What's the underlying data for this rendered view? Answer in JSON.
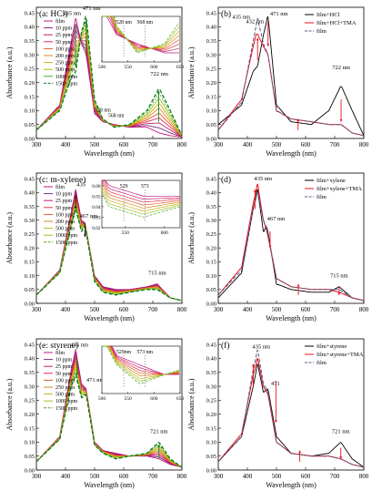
{
  "figure": {
    "panels": [
      {
        "id": "a",
        "label": "(a: HCl)",
        "xlabel": "Wavelength (nm)",
        "ylabel": "Absorbance (a.u.)",
        "legend": [
          "film",
          "10 ppm",
          "25 ppm",
          "50 ppm",
          "100 ppm",
          "200 ppm",
          "250 ppm",
          "500 ppm",
          "1000 ppm",
          "1500 ppm"
        ],
        "annotations": [
          "435 nm",
          "471 nm",
          "528 nm",
          "568 nm",
          "722 nm"
        ],
        "inset": {
          "annotations": [
            "528 nm",
            "568 nm"
          ],
          "xticks": [
            "500",
            "550",
            "600",
            "650"
          ]
        }
      },
      {
        "id": "b",
        "label": "(b)",
        "xlabel": "Wavelength (nm)",
        "ylabel": "Absorbance (a.u.)",
        "legend": [
          "film+HCl",
          "film+HCl+TMA",
          "film"
        ],
        "annotations": [
          "432 nm",
          "435 nm",
          "471 nm",
          "722 nm"
        ]
      },
      {
        "id": "c",
        "label": "(c: m-xylene)",
        "xlabel": "Wavelength (nm)",
        "ylabel": "Absorbance (a.u.)",
        "legend": [
          "film",
          "10 ppm",
          "25 ppm",
          "50 ppm",
          "100 ppm",
          "200 ppm",
          "500 ppm",
          "1000 ppm",
          "1500 ppm"
        ],
        "annotations": [
          "435",
          "467 nm",
          "715 nm"
        ],
        "inset": {
          "annotations": [
            "529",
            "573"
          ],
          "xticks": [
            "550",
            "600"
          ],
          "yticks": [
            "0.06",
            "0.05",
            "0.04",
            "0.03",
            "0.02"
          ]
        }
      },
      {
        "id": "d",
        "label": "(d)",
        "xlabel": "Wavelength (nm)",
        "ylabel": "Absorbance (a.u.)",
        "legend": [
          "film+xylene",
          "film+xylene+TMA",
          "film"
        ],
        "annotations": [
          "435 nm",
          "467 nm",
          "715 nm"
        ]
      },
      {
        "id": "e",
        "label": "(e: styrene)",
        "xlabel": "Wavelength (nm)",
        "ylabel": "Absorbance (a.u.)",
        "legend": [
          "film",
          "10 ppm",
          "25 ppm",
          "50 ppm",
          "100 ppm",
          "250 ppm",
          "500 ppm",
          "1000 ppm",
          "1500 ppm"
        ],
        "annotations": [
          "435 nm",
          "471 nm",
          "721 nm"
        ],
        "inset": {
          "annotations": [
            "529nm",
            "573 nm"
          ],
          "xticks": [
            "500",
            "550",
            "600",
            "650"
          ]
        }
      },
      {
        "id": "f",
        "label": "(f)",
        "xlabel": "Wavelength (nm)",
        "ylabel": "Absorbance (a.u.)",
        "legend": [
          "film+styrene",
          "film+styrene+TMA",
          "film"
        ],
        "annotations": [
          "435 nm",
          "471",
          "721 nm"
        ]
      }
    ],
    "xticks": [
      "300",
      "400",
      "500",
      "600",
      "700",
      "800"
    ],
    "yticks": [
      "0.00",
      "0.05",
      "0.10",
      "0.15",
      "0.20",
      "0.25",
      "0.30",
      "0.35",
      "0.40",
      "0.45"
    ],
    "colors": {
      "black": "#000000",
      "red": "#e8101a",
      "gray": "#6f6f96",
      "green": "#0a7a1a"
    }
  },
  "chart_data": [
    {
      "type": "line",
      "title": "(a: HCl)",
      "xlabel": "Wavelength (nm)",
      "ylabel": "Absorbance (a.u.)",
      "xlim": [
        300,
        800
      ],
      "ylim": [
        0,
        0.47
      ],
      "series": [
        {
          "name": "film",
          "x": [
            300,
            380,
            420,
            435,
            455,
            471,
            500,
            528,
            568,
            620,
            680,
            722,
            760,
            800
          ],
          "y": [
            0.03,
            0.12,
            0.35,
            0.43,
            0.34,
            0.3,
            0.09,
            0.06,
            0.05,
            0.04,
            0.04,
            0.02,
            0.01,
            0.005
          ]
        },
        {
          "name": "1500 ppm",
          "x": [
            300,
            380,
            420,
            435,
            455,
            471,
            500,
            528,
            568,
            620,
            680,
            722,
            760,
            800
          ],
          "y": [
            0.03,
            0.1,
            0.22,
            0.24,
            0.38,
            0.44,
            0.14,
            0.07,
            0.04,
            0.05,
            0.1,
            0.18,
            0.1,
            0.01
          ]
        }
      ]
    },
    {
      "type": "line",
      "title": "(b)",
      "xlabel": "Wavelength (nm)",
      "ylabel": "Absorbance (a.u.)",
      "xlim": [
        300,
        800
      ],
      "ylim": [
        0,
        0.47
      ],
      "series": [
        {
          "name": "film+HCl",
          "x": [
            300,
            380,
            420,
            435,
            455,
            471,
            500,
            550,
            620,
            680,
            722,
            760,
            800
          ],
          "y": [
            0.05,
            0.12,
            0.24,
            0.26,
            0.37,
            0.44,
            0.12,
            0.06,
            0.05,
            0.1,
            0.19,
            0.1,
            0.01
          ]
        },
        {
          "name": "film+HCl+TMA",
          "x": [
            300,
            380,
            420,
            432,
            455,
            471,
            500,
            550,
            620,
            680,
            722,
            760,
            800
          ],
          "y": [
            0.03,
            0.14,
            0.33,
            0.38,
            0.33,
            0.3,
            0.1,
            0.07,
            0.06,
            0.05,
            0.05,
            0.02,
            0.01
          ]
        },
        {
          "name": "film",
          "x": [
            300,
            380,
            420,
            435,
            455,
            471,
            500,
            550,
            620,
            680,
            722,
            760,
            800
          ],
          "y": [
            0.03,
            0.13,
            0.35,
            0.43,
            0.34,
            0.3,
            0.1,
            0.07,
            0.06,
            0.05,
            0.05,
            0.02,
            0.01
          ]
        }
      ]
    },
    {
      "type": "line",
      "title": "(c: m-xylene)",
      "xlabel": "Wavelength (nm)",
      "ylabel": "Absorbance (a.u.)",
      "xlim": [
        300,
        800
      ],
      "ylim": [
        0,
        0.47
      ],
      "series": [
        {
          "name": "film",
          "x": [
            300,
            380,
            420,
            435,
            455,
            467,
            500,
            529,
            573,
            620,
            680,
            715,
            760,
            800
          ],
          "y": [
            0.03,
            0.12,
            0.33,
            0.41,
            0.3,
            0.29,
            0.1,
            0.06,
            0.05,
            0.05,
            0.06,
            0.07,
            0.02,
            0.01
          ]
        },
        {
          "name": "1500 ppm",
          "x": [
            300,
            380,
            420,
            435,
            455,
            467,
            500,
            529,
            573,
            620,
            680,
            715,
            760,
            800
          ],
          "y": [
            0.03,
            0.11,
            0.28,
            0.34,
            0.26,
            0.28,
            0.08,
            0.04,
            0.03,
            0.04,
            0.05,
            0.05,
            0.02,
            0.01
          ]
        }
      ]
    },
    {
      "type": "line",
      "title": "(d)",
      "xlabel": "Wavelength (nm)",
      "ylabel": "Absorbance (a.u.)",
      "xlim": [
        300,
        800
      ],
      "ylim": [
        0,
        0.47
      ],
      "series": [
        {
          "name": "film+xylene",
          "x": [
            300,
            380,
            420,
            435,
            455,
            467,
            500,
            550,
            620,
            680,
            715,
            760,
            800
          ],
          "y": [
            0.02,
            0.11,
            0.34,
            0.41,
            0.26,
            0.28,
            0.07,
            0.05,
            0.04,
            0.04,
            0.06,
            0.02,
            0.01
          ]
        },
        {
          "name": "film+xylene+TMA",
          "x": [
            300,
            380,
            420,
            435,
            455,
            467,
            500,
            550,
            620,
            680,
            715,
            760,
            800
          ],
          "y": [
            0.03,
            0.13,
            0.36,
            0.43,
            0.3,
            0.26,
            0.09,
            0.06,
            0.05,
            0.05,
            0.04,
            0.02,
            0.01
          ]
        },
        {
          "name": "film",
          "x": [
            300,
            380,
            420,
            435,
            455,
            467,
            500,
            550,
            620,
            680,
            715,
            760,
            800
          ],
          "y": [
            0.03,
            0.12,
            0.34,
            0.4,
            0.3,
            0.27,
            0.09,
            0.06,
            0.05,
            0.05,
            0.05,
            0.02,
            0.01
          ]
        }
      ]
    },
    {
      "type": "line",
      "title": "(e: styrene)",
      "xlabel": "Wavelength (nm)",
      "ylabel": "Absorbance (a.u.)",
      "xlim": [
        300,
        800
      ],
      "ylim": [
        0,
        0.47
      ],
      "series": [
        {
          "name": "film",
          "x": [
            300,
            380,
            420,
            435,
            455,
            471,
            500,
            529,
            573,
            620,
            680,
            721,
            760,
            800
          ],
          "y": [
            0.03,
            0.12,
            0.36,
            0.43,
            0.31,
            0.29,
            0.1,
            0.07,
            0.06,
            0.05,
            0.05,
            0.04,
            0.02,
            0.01
          ]
        },
        {
          "name": "1500 ppm",
          "x": [
            300,
            380,
            420,
            435,
            455,
            471,
            500,
            529,
            573,
            620,
            680,
            721,
            760,
            800
          ],
          "y": [
            0.03,
            0.11,
            0.3,
            0.34,
            0.26,
            0.27,
            0.09,
            0.06,
            0.04,
            0.05,
            0.06,
            0.1,
            0.04,
            0.01
          ]
        }
      ]
    },
    {
      "type": "line",
      "title": "(f)",
      "xlabel": "Wavelength (nm)",
      "ylabel": "Absorbance (a.u.)",
      "xlim": [
        300,
        800
      ],
      "ylim": [
        0,
        0.47
      ],
      "series": [
        {
          "name": "film+styrene",
          "x": [
            300,
            380,
            420,
            435,
            455,
            471,
            500,
            550,
            620,
            680,
            721,
            760,
            800
          ],
          "y": [
            0.03,
            0.12,
            0.3,
            0.38,
            0.28,
            0.29,
            0.12,
            0.06,
            0.05,
            0.06,
            0.1,
            0.04,
            0.01
          ]
        },
        {
          "name": "film+styrene+TMA",
          "x": [
            300,
            380,
            420,
            435,
            455,
            471,
            500,
            550,
            620,
            680,
            721,
            760,
            800
          ],
          "y": [
            0.03,
            0.13,
            0.34,
            0.4,
            0.3,
            0.27,
            0.1,
            0.06,
            0.05,
            0.05,
            0.04,
            0.02,
            0.01
          ]
        },
        {
          "name": "film",
          "x": [
            300,
            380,
            420,
            435,
            455,
            471,
            500,
            550,
            620,
            680,
            721,
            760,
            800
          ],
          "y": [
            0.03,
            0.12,
            0.36,
            0.43,
            0.31,
            0.28,
            0.1,
            0.06,
            0.05,
            0.05,
            0.04,
            0.02,
            0.01
          ]
        }
      ]
    }
  ]
}
